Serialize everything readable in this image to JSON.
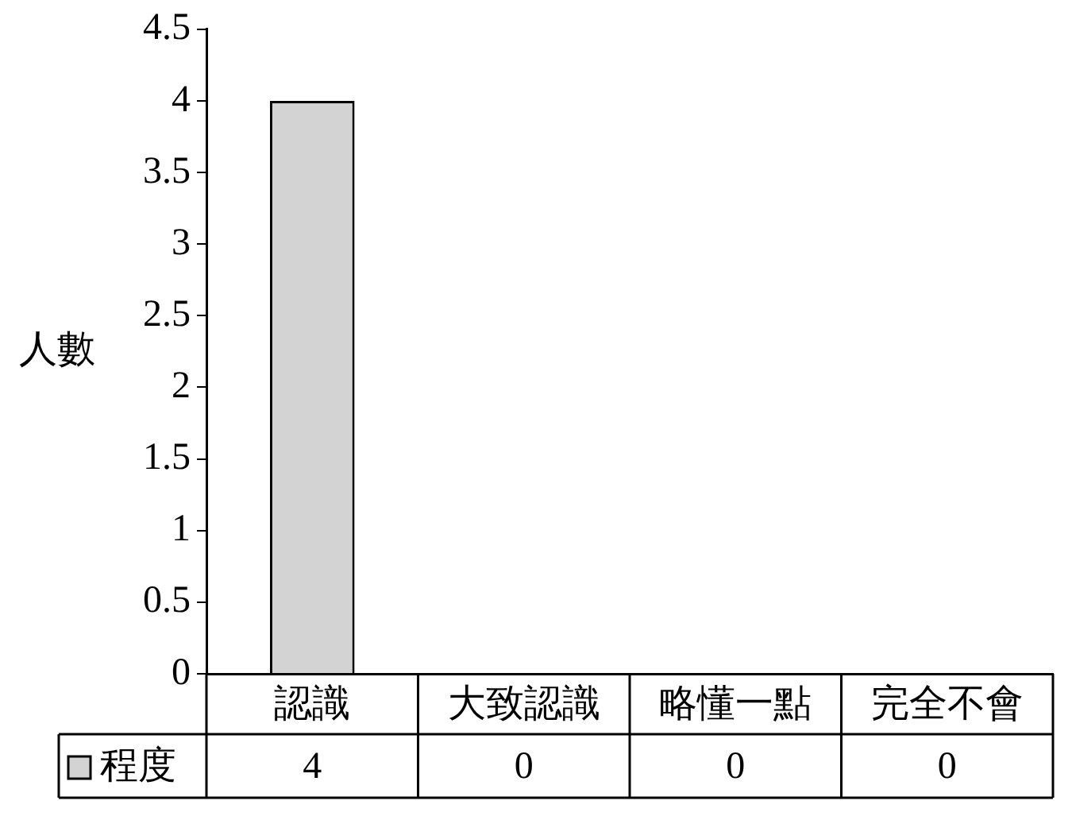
{
  "chart_data": {
    "type": "bar",
    "ylabel": "人數",
    "categories": [
      "認識",
      "大致認識",
      "略懂一點",
      "完全不會"
    ],
    "series": [
      {
        "name": "程度",
        "color": "#d3d3d3",
        "values": [
          4,
          0,
          0,
          0
        ]
      }
    ],
    "ylim": [
      0,
      4.5
    ],
    "yticks": [
      0,
      0.5,
      1,
      1.5,
      2,
      2.5,
      3,
      3.5,
      4,
      4.5
    ],
    "grid": false,
    "legend": "bottom",
    "data_labels": true
  }
}
